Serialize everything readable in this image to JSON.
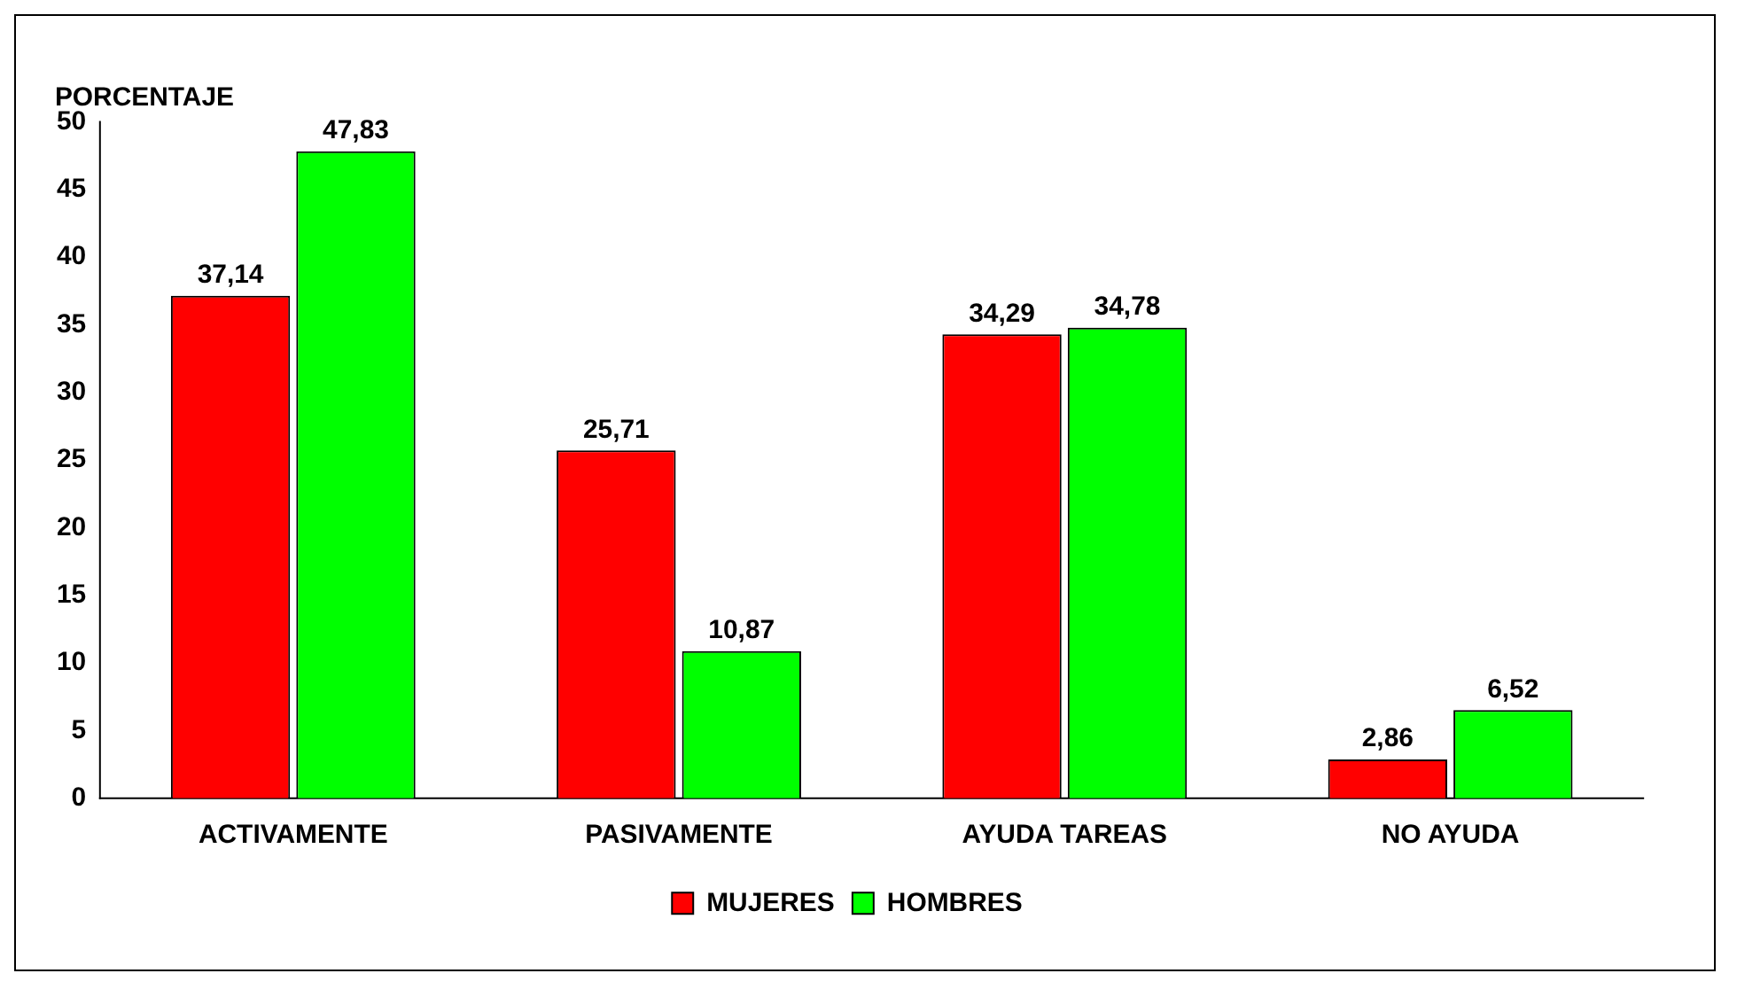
{
  "chart_data": {
    "type": "bar",
    "ylabel": "PORCENTAJE",
    "categories": [
      "ACTIVAMENTE",
      "PASIVAMENTE",
      "AYUDA TAREAS",
      "NO AYUDA"
    ],
    "series": [
      {
        "name": "MUJERES",
        "color": "#ff0000",
        "values": [
          37.14,
          25.71,
          34.29,
          2.86
        ],
        "value_labels": [
          "37,14",
          "25,71",
          "34,29",
          "2,86"
        ]
      },
      {
        "name": "HOMBRES",
        "color": "#00ff00",
        "values": [
          47.83,
          10.87,
          34.78,
          6.52
        ],
        "value_labels": [
          "47,83",
          "10,87",
          "34,78",
          "6,52"
        ]
      }
    ],
    "ylim": [
      0,
      50
    ],
    "yticks": [
      0,
      5,
      10,
      15,
      20,
      25,
      30,
      35,
      40,
      45,
      50
    ],
    "grid": false,
    "legend": "bottom"
  }
}
